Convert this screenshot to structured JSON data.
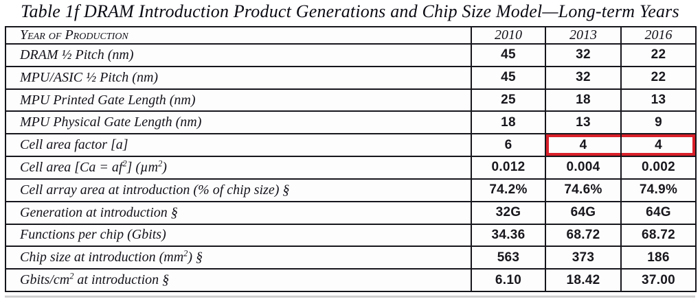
{
  "title": "Table 1f  DRAM Introduction Product Generations and Chip Size Model—Long-term Years",
  "table": {
    "header": {
      "label": "Year of Production",
      "years": [
        "2010",
        "2013",
        "2016"
      ]
    },
    "rows": [
      {
        "label": "DRAM ½ Pitch (nm)",
        "values": [
          "45",
          "32",
          "22"
        ]
      },
      {
        "label": "MPU/ASIC  ½ Pitch (nm)",
        "values": [
          "45",
          "32",
          "22"
        ]
      },
      {
        "label": "MPU Printed Gate Length (nm)",
        "values": [
          "25",
          "18",
          "13"
        ]
      },
      {
        "label": "MPU Physical Gate Length (nm)",
        "values": [
          "18",
          "13",
          "9"
        ]
      },
      {
        "label": "Cell area factor  [a]",
        "values": [
          "6",
          "4",
          "4"
        ]
      },
      {
        "label": "Cell area [Ca = af²] (µm²)",
        "values": [
          "0.012",
          "0.004",
          "0.002"
        ]
      },
      {
        "label": "Cell array area at introduction (% of chip size)  §",
        "values": [
          "74.2%",
          "74.6%",
          "74.9%"
        ]
      },
      {
        "label": "Generation at introduction  §",
        "values": [
          "32G",
          "64G",
          "64G"
        ]
      },
      {
        "label": "Functions per chip (Gbits)",
        "values": [
          "34.36",
          "68.72",
          "68.72"
        ]
      },
      {
        "label": "Chip size at introduction (mm²) §",
        "values": [
          "563",
          "373",
          "186"
        ]
      },
      {
        "label": "Gbits/cm² at introduction  §",
        "values": [
          "6.10",
          "18.42",
          "37.00"
        ]
      }
    ],
    "highlight": {
      "row_label": "Cell area factor  [a]",
      "columns": [
        "2013",
        "2016"
      ],
      "color": "#d9202a"
    }
  }
}
